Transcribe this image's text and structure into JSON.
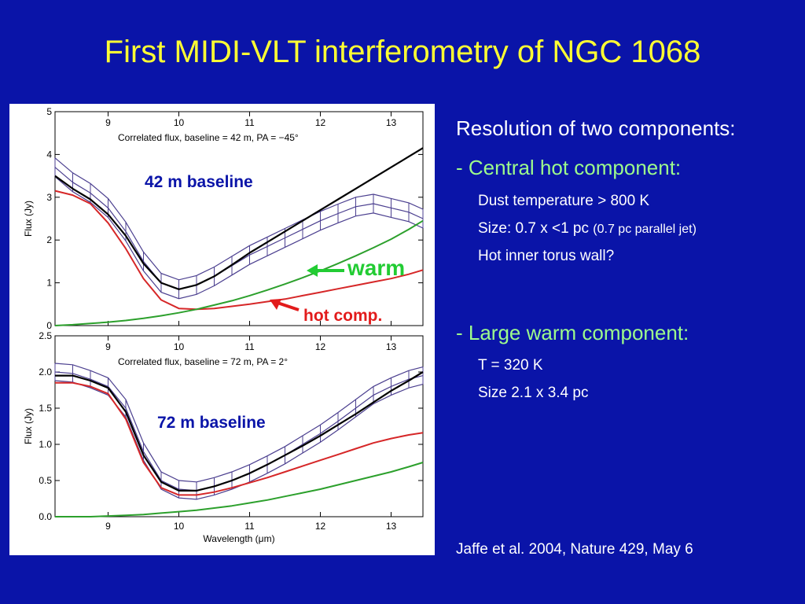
{
  "title": "First MIDI-VLT interferometry of NGC 1068",
  "figure_labels": {
    "baseline_42": "42 m baseline",
    "baseline_72": "72 m baseline",
    "warm": "warm",
    "hot": "hot comp."
  },
  "text": {
    "heading_resolution": "Resolution of two components:",
    "heading_hot": "- Central hot component:",
    "hot_items": [
      "Dust temperature > 800 K",
      "Size: 0.7 x <1 pc",
      "Hot inner torus wall?"
    ],
    "hot_size_note": "(0.7 pc parallel jet)",
    "heading_warm": "- Large warm component:",
    "warm_items": [
      "T = 320 K",
      "Size 2.1 x 3.4 pc"
    ],
    "reference": "Jaffe et al. 2004, Nature 429, May 6"
  },
  "chart_data": [
    {
      "type": "line",
      "title": "Correlated flux, baseline = 42 m, PA = −45°",
      "xlabel": "",
      "ylabel": "Flux (Jy)",
      "xlim": [
        8.25,
        13.45
      ],
      "ylim": [
        0,
        5
      ],
      "xticks": [
        "9",
        "10",
        "11",
        "12",
        "13"
      ],
      "yticks": [
        "0",
        "1",
        "2",
        "3",
        "4",
        "5"
      ],
      "colors": {
        "measured": "#4b3f8f",
        "model": "#000000",
        "hot": "#d62728",
        "warm": "#2ca02c"
      },
      "x": [
        8.25,
        8.5,
        8.75,
        9.0,
        9.25,
        9.5,
        9.75,
        10.0,
        10.25,
        10.5,
        10.75,
        11.0,
        11.25,
        11.5,
        11.75,
        12.0,
        12.25,
        12.5,
        12.75,
        13.0,
        13.25,
        13.45
      ],
      "series": [
        {
          "values": [
            3.7,
            3.35,
            3.1,
            2.75,
            2.2,
            1.5,
            1.0,
            0.85,
            0.95,
            1.15,
            1.4,
            1.65,
            1.85,
            2.05,
            2.25,
            2.45,
            2.62,
            2.78,
            2.85,
            2.75,
            2.65,
            2.5
          ],
          "err": 0.22
        },
        {
          "values": [
            3.5,
            3.2,
            2.95,
            2.6,
            2.1,
            1.45,
            1.0,
            0.85,
            0.95,
            1.15,
            1.42,
            1.7,
            1.95,
            2.2,
            2.45,
            2.7,
            2.95,
            3.2,
            3.45,
            3.7,
            3.95,
            4.15
          ]
        },
        {
          "values": [
            3.15,
            3.05,
            2.85,
            2.4,
            1.8,
            1.1,
            0.6,
            0.4,
            0.38,
            0.4,
            0.45,
            0.5,
            0.56,
            0.62,
            0.7,
            0.78,
            0.86,
            0.94,
            1.02,
            1.1,
            1.2,
            1.3
          ]
        },
        {
          "values": [
            0.0,
            0.02,
            0.05,
            0.08,
            0.12,
            0.17,
            0.23,
            0.3,
            0.38,
            0.48,
            0.58,
            0.7,
            0.83,
            0.97,
            1.12,
            1.28,
            1.45,
            1.63,
            1.82,
            2.02,
            2.25,
            2.45
          ]
        }
      ]
    },
    {
      "type": "line",
      "title": "Correlated flux, baseline = 72 m, PA = 2°",
      "xlabel": "Wavelength (μm)",
      "ylabel": "Flux (Jy)",
      "xlim": [
        8.25,
        13.45
      ],
      "ylim": [
        0,
        2.5
      ],
      "xticks": [
        "9",
        "10",
        "11",
        "12",
        "13"
      ],
      "yticks": [
        "0.0",
        "0.5",
        "1.0",
        "1.5",
        "2.0",
        "2.5"
      ],
      "colors": {
        "measured": "#4b3f8f",
        "model": "#000000",
        "hot": "#d62728",
        "warm": "#2ca02c"
      },
      "x": [
        8.25,
        8.5,
        8.75,
        9.0,
        9.25,
        9.5,
        9.75,
        10.0,
        10.25,
        10.5,
        10.75,
        11.0,
        11.25,
        11.5,
        11.75,
        12.0,
        12.25,
        12.5,
        12.75,
        13.0,
        13.25,
        13.45
      ],
      "series": [
        {
          "values": [
            2.0,
            1.98,
            1.9,
            1.8,
            1.5,
            0.9,
            0.5,
            0.38,
            0.36,
            0.42,
            0.5,
            0.6,
            0.72,
            0.85,
            1.0,
            1.15,
            1.32,
            1.5,
            1.68,
            1.8,
            1.9,
            1.95
          ],
          "err": 0.12
        },
        {
          "values": [
            1.95,
            1.95,
            1.88,
            1.78,
            1.45,
            0.85,
            0.48,
            0.36,
            0.36,
            0.42,
            0.5,
            0.6,
            0.72,
            0.85,
            0.98,
            1.12,
            1.27,
            1.42,
            1.58,
            1.74,
            1.88,
            2.0
          ]
        },
        {
          "values": [
            1.85,
            1.85,
            1.8,
            1.7,
            1.35,
            0.75,
            0.4,
            0.3,
            0.3,
            0.34,
            0.4,
            0.47,
            0.54,
            0.62,
            0.7,
            0.78,
            0.86,
            0.94,
            1.02,
            1.08,
            1.13,
            1.16
          ]
        },
        {
          "values": [
            0.0,
            0.0,
            0.0,
            0.01,
            0.02,
            0.03,
            0.05,
            0.07,
            0.09,
            0.12,
            0.15,
            0.19,
            0.23,
            0.28,
            0.33,
            0.38,
            0.44,
            0.5,
            0.56,
            0.62,
            0.69,
            0.75
          ]
        }
      ]
    }
  ]
}
